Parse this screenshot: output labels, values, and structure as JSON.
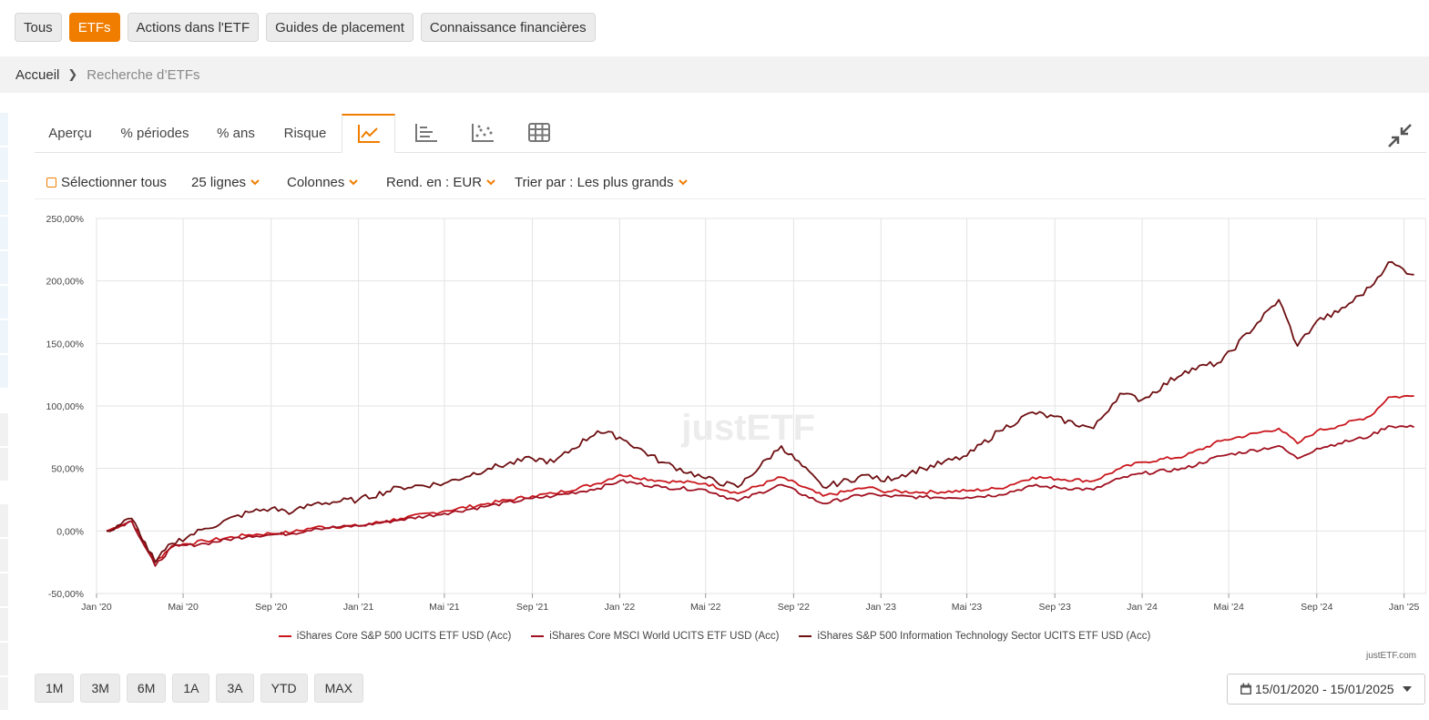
{
  "topnav": [
    "Tous",
    "ETFs",
    "Actions dans l'ETF",
    "Guides de placement",
    "Connaissance financières"
  ],
  "breadcrumb": {
    "home": "Accueil",
    "current": "Recherche d’ETFs"
  },
  "tabs": [
    "Aperçu",
    "% périodes",
    "% ans",
    "Risque"
  ],
  "toolbar": {
    "select_all": "Sélectionner tous",
    "rows": "25 lignes",
    "columns": "Colonnes",
    "currency": "Rend. en : EUR",
    "sort": "Trier par : Les plus grands"
  },
  "accent_color": "#f07d00",
  "watermark": "justETF",
  "credit": "justETF.com",
  "periods": [
    "1M",
    "3M",
    "6M",
    "1A",
    "3A",
    "YTD",
    "MAX"
  ],
  "date_range": "15/01/2020 - 15/01/2025",
  "chart_data": {
    "type": "line",
    "ylabel": "",
    "xlabel": "",
    "y_ticks": [
      "250,00%",
      "200,00%",
      "150,00%",
      "100,00%",
      "50,00%",
      "0,00%",
      "-50,00%"
    ],
    "ylim": [
      -50,
      250
    ],
    "x_ticks": [
      "Jan '20",
      "Mai '20",
      "Sep '20",
      "Jan '21",
      "Mai '21",
      "Sep '21",
      "Jan '22",
      "Mai '22",
      "Sep '22",
      "Jan '23",
      "Mai '23",
      "Sep '23",
      "Jan '24",
      "Mai '24",
      "Sep '24",
      "Jan '25"
    ],
    "x": [
      "2020-01-15",
      "2020-02-19",
      "2020-03-23",
      "2020-04-15",
      "2020-06-01",
      "2020-08-01",
      "2020-09-01",
      "2020-10-01",
      "2020-11-01",
      "2021-01-01",
      "2021-03-01",
      "2021-05-01",
      "2021-07-01",
      "2021-09-01",
      "2021-10-01",
      "2021-12-01",
      "2022-01-01",
      "2022-03-01",
      "2022-05-01",
      "2022-06-15",
      "2022-08-15",
      "2022-10-12",
      "2022-12-15",
      "2023-01-01",
      "2023-03-01",
      "2023-05-01",
      "2023-06-15",
      "2023-08-01",
      "2023-10-25",
      "2023-12-01",
      "2024-01-01",
      "2024-03-01",
      "2024-04-20",
      "2024-07-10",
      "2024-08-05",
      "2024-09-01",
      "2024-10-01",
      "2024-11-15",
      "2024-12-10",
      "2025-01-15"
    ],
    "series": [
      {
        "name": "iShares Core S&P 500 UCITS ETF USD (Acc)",
        "color": "#c8171d",
        "values": [
          0,
          8,
          -25,
          -12,
          -8,
          -3,
          -2,
          -1,
          3,
          4,
          10,
          16,
          22,
          28,
          30,
          38,
          45,
          40,
          38,
          30,
          43,
          28,
          35,
          32,
          31,
          32,
          34,
          43,
          40,
          50,
          55,
          60,
          72,
          82,
          70,
          80,
          84,
          92,
          107,
          108
        ]
      },
      {
        "name": "iShares Core MSCI World UCITS ETF USD (Acc)",
        "color": "#a01020",
        "values": [
          0,
          8,
          -28,
          -13,
          -10,
          -4,
          -3,
          -2,
          2,
          4,
          9,
          14,
          20,
          26,
          28,
          34,
          40,
          35,
          33,
          24,
          37,
          22,
          30,
          28,
          27,
          27,
          29,
          36,
          33,
          42,
          46,
          50,
          60,
          68,
          58,
          66,
          70,
          76,
          84,
          83
        ]
      },
      {
        "name": "iShares S&P 500 Information Technology Sector UCITS ETF USD (Acc)",
        "color": "#6e0f12",
        "values": [
          0,
          10,
          -25,
          -10,
          2,
          15,
          18,
          15,
          22,
          25,
          35,
          38,
          50,
          58,
          55,
          80,
          75,
          55,
          42,
          35,
          68,
          35,
          45,
          40,
          50,
          60,
          80,
          95,
          82,
          110,
          105,
          128,
          135,
          185,
          148,
          168,
          175,
          195,
          215,
          205
        ]
      }
    ]
  }
}
